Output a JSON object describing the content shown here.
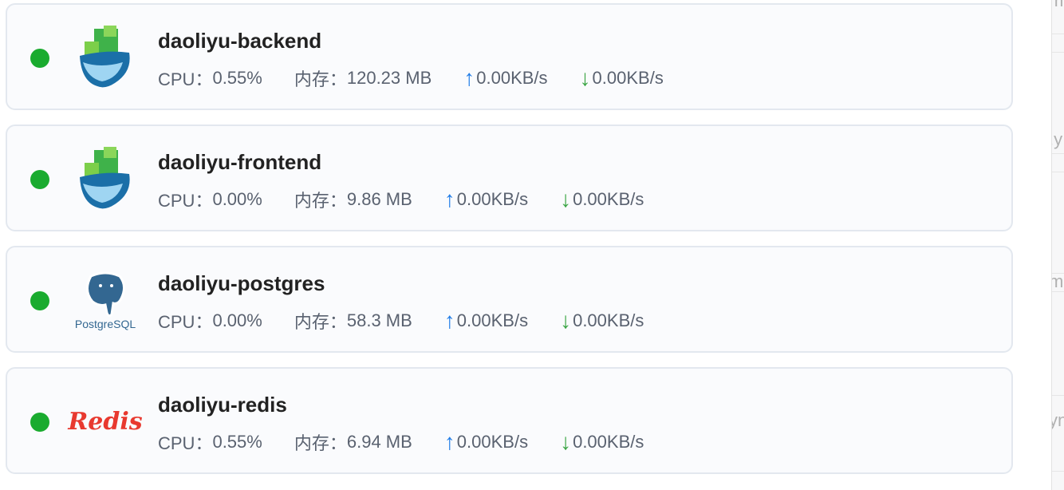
{
  "containers": [
    {
      "name": "daoliyu-backend",
      "icon": "docker-node-icon",
      "status_color": "#1aab2f",
      "cpu_label": "CPU：",
      "cpu": "0.55%",
      "mem_label": "内存：",
      "mem": "120.23 MB",
      "up": "0.00KB/s",
      "down": "0.00KB/s"
    },
    {
      "name": "daoliyu-frontend",
      "icon": "docker-node-icon",
      "status_color": "#1aab2f",
      "cpu_label": "CPU：",
      "cpu": "0.00%",
      "mem_label": "内存：",
      "mem": "9.86 MB",
      "up": "0.00KB/s",
      "down": "0.00KB/s"
    },
    {
      "name": "daoliyu-postgres",
      "icon": "postgresql-icon",
      "logo_text": "PostgreSQL",
      "status_color": "#1aab2f",
      "cpu_label": "CPU：",
      "cpu": "0.00%",
      "mem_label": "内存：",
      "mem": "58.3 MB",
      "up": "0.00KB/s",
      "down": "0.00KB/s"
    },
    {
      "name": "daoliyu-redis",
      "icon": "redis-icon",
      "logo_text": "Redis",
      "status_color": "#1aab2f",
      "cpu_label": "CPU：",
      "cpu": "0.55%",
      "mem_label": "内存：",
      "mem": "6.94 MB",
      "up": "0.00KB/s",
      "down": "0.00KB/s"
    }
  ],
  "side_panel": {
    "fragments": [
      "m",
      ".y",
      "m",
      "yn"
    ]
  },
  "colors": {
    "upload": "#1e7be6",
    "download": "#3aa544",
    "running": "#1aab2f"
  }
}
